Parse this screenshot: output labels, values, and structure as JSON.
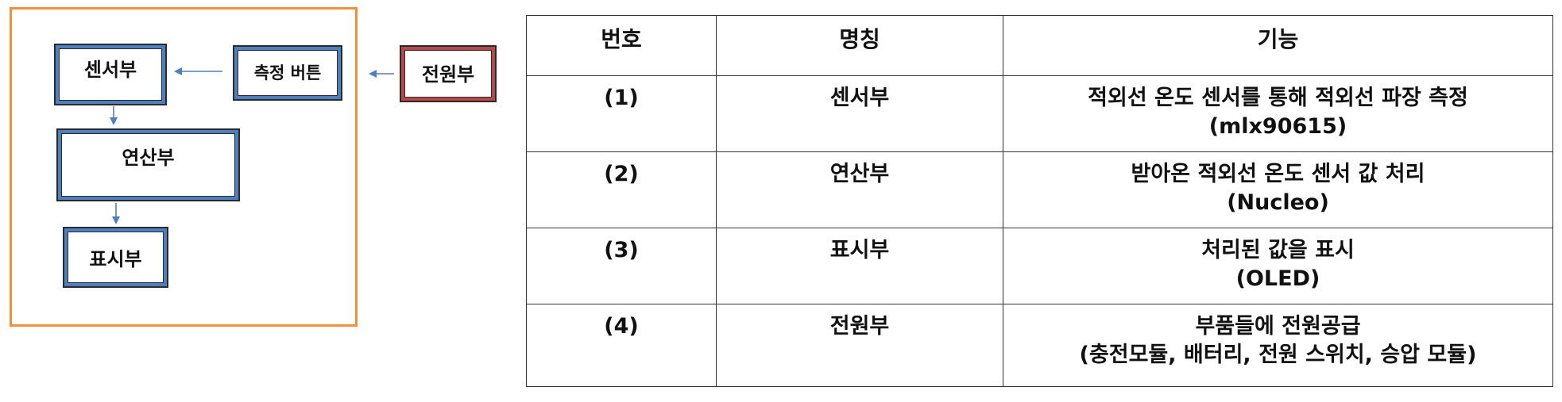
{
  "diagram": {
    "blocks": {
      "sensor": "센서부",
      "button": "측정 버튼",
      "power": "전원부",
      "compute": "연산부",
      "display": "표시부"
    }
  },
  "colors": {
    "frame": "#f0913a",
    "block_blue": "#4e7fc0",
    "block_red": "#b8474a",
    "arrow": "#4e7fc0"
  },
  "table": {
    "headers": {
      "number": "번호",
      "name": "명칭",
      "function": "기능"
    },
    "rows": [
      {
        "number": "(1)",
        "name": "센서부",
        "function_line1": "적외선 온도 센서를 통해 적외선 파장 측정",
        "function_line2": "(mlx90615)"
      },
      {
        "number": "(2)",
        "name": "연산부",
        "function_line1": "받아온 적외선 온도 센서 값 처리",
        "function_line2": "(Nucleo)"
      },
      {
        "number": "(3)",
        "name": "표시부",
        "function_line1": "처리된 값을 표시",
        "function_line2": "(OLED)"
      },
      {
        "number": "(4)",
        "name": "전원부",
        "function_line1": "부품들에 전원공급",
        "function_line2": "(충전모듈, 배터리, 전원 스위치, 승압 모듈)"
      }
    ]
  }
}
